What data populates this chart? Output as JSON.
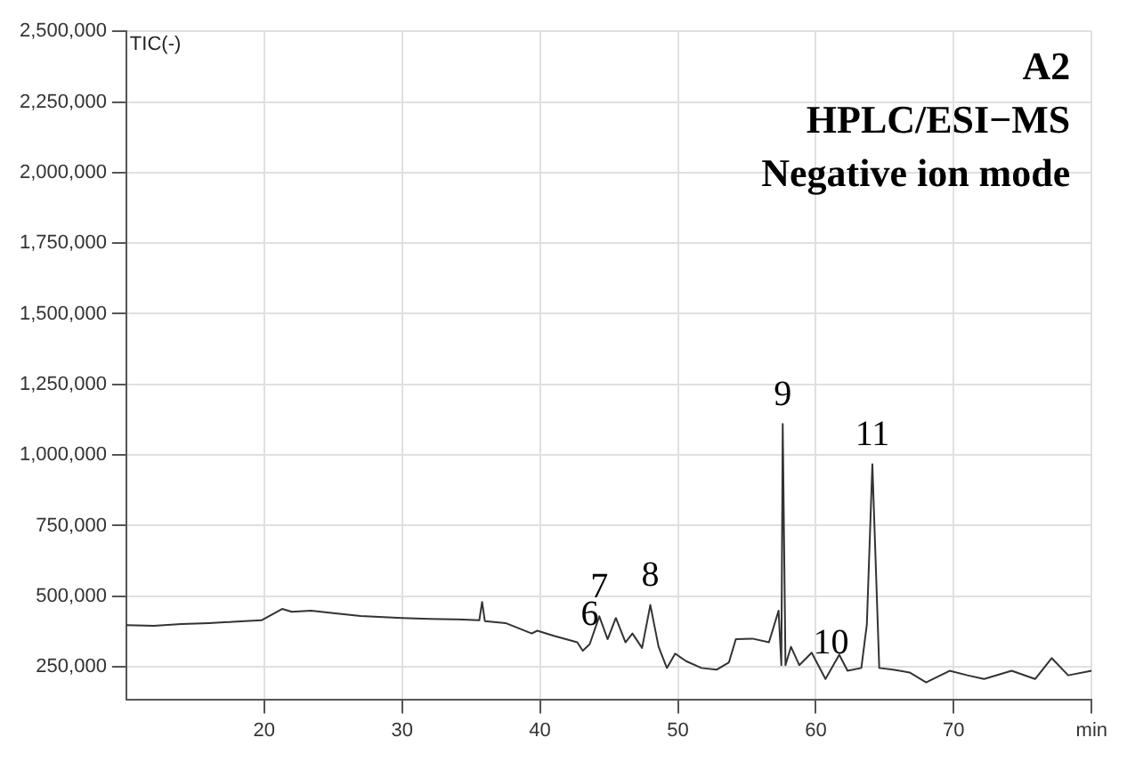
{
  "chart_data": {
    "type": "line",
    "title": "A2",
    "subtitle": "HPLC/ESI−MS",
    "ylabel": "TIC(-)",
    "x": [
      10,
      12,
      14,
      16,
      18,
      19.8,
      21.3,
      22,
      23.4,
      25,
      27,
      30,
      32,
      34,
      35.6,
      35.8,
      36,
      37.5,
      39.4,
      39.8,
      41,
      42.7,
      43.1,
      43.6,
      44.3,
      44.9,
      45.5,
      46.2,
      46.7,
      47.4,
      48.0,
      48.6,
      49.2,
      49.8,
      50.6,
      51.7,
      52.8,
      53.7,
      54.2,
      55.4,
      56.6,
      57.3,
      57.5,
      57.6,
      57.8,
      58.2,
      58.8,
      59.7,
      60.7,
      61.7,
      62.3,
      63.3,
      63.7,
      64.1,
      64.6,
      65.6,
      66.8,
      68.0,
      69.7,
      71,
      72.2,
      74.2,
      75.9,
      77.1,
      78.3,
      80
    ],
    "values": [
      398000,
      395000,
      402000,
      405000,
      410000,
      415000,
      455000,
      445000,
      449000,
      440000,
      430000,
      423000,
      420000,
      418000,
      415000,
      480000,
      412000,
      405000,
      368000,
      378000,
      360000,
      337000,
      307000,
      330000,
      429000,
      348000,
      423000,
      337000,
      368000,
      317000,
      469000,
      321000,
      246000,
      297000,
      270000,
      246000,
      240000,
      266000,
      348000,
      350000,
      337000,
      449000,
      256000,
      1110000,
      256000,
      321000,
      256000,
      300000,
      207000,
      293000,
      236000,
      246000,
      400000,
      967000,
      246000,
      240000,
      230000,
      195000,
      236000,
      220000,
      207000,
      236000,
      207000,
      281000,
      220000,
      236000
    ],
    "color": "#333333",
    "xlim": [
      10,
      80
    ],
    "xticks": [
      20,
      30,
      40,
      50,
      60,
      70,
      {
        "value": 80,
        "label": "min"
      }
    ],
    "ylim": [
      135000,
      2500000
    ],
    "yticks": [
      {
        "value": 250000,
        "label": "250,000"
      },
      {
        "value": 500000,
        "label": "500,000"
      },
      {
        "value": 750000,
        "label": "750,000"
      },
      {
        "value": 1000000,
        "label": "1,000,000"
      },
      {
        "value": 1250000,
        "label": "1,250,000"
      },
      {
        "value": 1500000,
        "label": "1,500,000"
      },
      {
        "value": 1750000,
        "label": "1,750,000"
      },
      {
        "value": 2000000,
        "label": "2,000,000"
      },
      {
        "value": 2250000,
        "label": "2,250,000"
      },
      {
        "value": 2500000,
        "label": "2,500,000"
      }
    ],
    "grid": true,
    "marker": "none",
    "line_style": "solid",
    "annotations": [
      "Negative ion mode",
      {
        "text": "6",
        "x": 43.6,
        "y": 330000
      },
      {
        "text": "7",
        "x": 44.3,
        "y": 429000
      },
      {
        "text": "8",
        "x": 48.0,
        "y": 469000
      },
      {
        "text": "9",
        "x": 57.6,
        "y": 1110000
      },
      {
        "text": "10",
        "x": 61.1,
        "y": 230000
      },
      {
        "text": "11",
        "x": 64.1,
        "y": 967000
      }
    ]
  }
}
